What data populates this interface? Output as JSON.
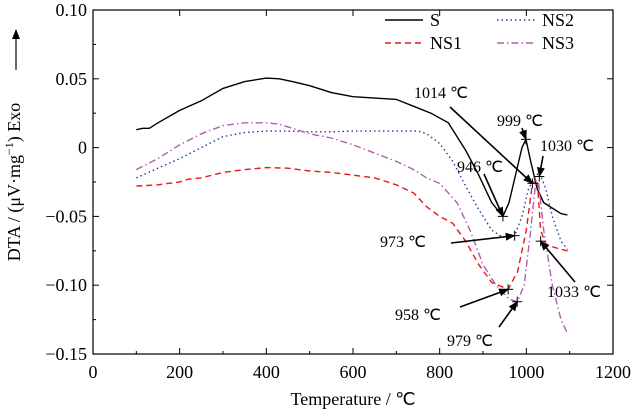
{
  "chart_data": {
    "type": "line",
    "title": "",
    "xlabel": "Temperature / ℃",
    "ylabel": "DTA / (μV·mg⁻¹) Exo",
    "ylabel_parts": [
      "DTA / (μV·mg",
      "−1",
      ") Exo"
    ],
    "xlim": [
      0,
      1200
    ],
    "ylim": [
      -0.15,
      0.1
    ],
    "xticks": [
      0,
      200,
      400,
      600,
      800,
      1000,
      1200
    ],
    "xtick_labels": [
      "0",
      "200",
      "400",
      "600",
      "800",
      "1000",
      "1200"
    ],
    "yticks": [
      -0.15,
      -0.1,
      -0.05,
      0,
      0.05,
      0.1
    ],
    "ytick_labels": [
      "−0.15",
      "−0.10",
      "−0.05",
      "0",
      "0.05",
      "0.10"
    ],
    "grid": false,
    "legend_position": "top-right",
    "series": [
      {
        "name": "S",
        "color": "#000000",
        "dash": "solid",
        "points": [
          [
            100,
            0.013
          ],
          [
            115,
            0.014
          ],
          [
            130,
            0.014
          ],
          [
            150,
            0.018
          ],
          [
            200,
            0.027
          ],
          [
            250,
            0.034
          ],
          [
            300,
            0.043
          ],
          [
            350,
            0.048
          ],
          [
            400,
            0.0505
          ],
          [
            430,
            0.05
          ],
          [
            460,
            0.048
          ],
          [
            500,
            0.045
          ],
          [
            550,
            0.04
          ],
          [
            600,
            0.037
          ],
          [
            650,
            0.036
          ],
          [
            700,
            0.035
          ],
          [
            740,
            0.03
          ],
          [
            780,
            0.025
          ],
          [
            820,
            0.018
          ],
          [
            860,
            -0.002
          ],
          [
            890,
            -0.02
          ],
          [
            920,
            -0.04
          ],
          [
            946,
            -0.05
          ],
          [
            960,
            -0.04
          ],
          [
            975,
            -0.02
          ],
          [
            990,
            0.0
          ],
          [
            999,
            0.006
          ],
          [
            1010,
            -0.01
          ],
          [
            1025,
            -0.03
          ],
          [
            1040,
            -0.04
          ],
          [
            1060,
            -0.044
          ],
          [
            1080,
            -0.048
          ],
          [
            1095,
            -0.049
          ]
        ]
      },
      {
        "name": "NS1",
        "color": "#e41a1c",
        "dash": "dashed",
        "points": [
          [
            100,
            -0.028
          ],
          [
            150,
            -0.027
          ],
          [
            200,
            -0.025
          ],
          [
            220,
            -0.023
          ],
          [
            250,
            -0.022
          ],
          [
            300,
            -0.018
          ],
          [
            350,
            -0.016
          ],
          [
            400,
            -0.0145
          ],
          [
            450,
            -0.015
          ],
          [
            500,
            -0.017
          ],
          [
            550,
            -0.018
          ],
          [
            600,
            -0.02
          ],
          [
            650,
            -0.022
          ],
          [
            700,
            -0.027
          ],
          [
            740,
            -0.033
          ],
          [
            770,
            -0.043
          ],
          [
            800,
            -0.05
          ],
          [
            830,
            -0.055
          ],
          [
            860,
            -0.068
          ],
          [
            890,
            -0.085
          ],
          [
            920,
            -0.098
          ],
          [
            958,
            -0.103
          ],
          [
            980,
            -0.09
          ],
          [
            1000,
            -0.06
          ],
          [
            1014,
            -0.026
          ],
          [
            1025,
            -0.023
          ],
          [
            1033,
            -0.06
          ],
          [
            1045,
            -0.07
          ],
          [
            1060,
            -0.072
          ],
          [
            1080,
            -0.074
          ],
          [
            1095,
            -0.075
          ]
        ]
      },
      {
        "name": "NS2",
        "color": "#2b3a9a",
        "dash": "dotted",
        "points": [
          [
            100,
            -0.022
          ],
          [
            150,
            -0.015
          ],
          [
            200,
            -0.008
          ],
          [
            250,
            0.0
          ],
          [
            300,
            0.008
          ],
          [
            350,
            0.011
          ],
          [
            400,
            0.012
          ],
          [
            450,
            0.012
          ],
          [
            500,
            0.0115
          ],
          [
            550,
            0.0115
          ],
          [
            600,
            0.012
          ],
          [
            650,
            0.012
          ],
          [
            700,
            0.012
          ],
          [
            750,
            0.012
          ],
          [
            770,
            0.01
          ],
          [
            800,
            0.003
          ],
          [
            830,
            -0.01
          ],
          [
            860,
            -0.028
          ],
          [
            890,
            -0.045
          ],
          [
            920,
            -0.06
          ],
          [
            945,
            -0.065
          ],
          [
            973,
            -0.064
          ],
          [
            990,
            -0.05
          ],
          [
            1005,
            -0.03
          ],
          [
            1020,
            -0.021
          ],
          [
            1030,
            -0.018
          ],
          [
            1045,
            -0.03
          ],
          [
            1060,
            -0.05
          ],
          [
            1080,
            -0.068
          ],
          [
            1095,
            -0.074
          ]
        ]
      },
      {
        "name": "NS3",
        "color": "#b05fb0",
        "dash": "dashdot",
        "points": [
          [
            100,
            -0.016
          ],
          [
            150,
            -0.008
          ],
          [
            200,
            0.002
          ],
          [
            250,
            0.01
          ],
          [
            300,
            0.016
          ],
          [
            350,
            0.018
          ],
          [
            400,
            0.018
          ],
          [
            430,
            0.017
          ],
          [
            460,
            0.014
          ],
          [
            500,
            0.01
          ],
          [
            550,
            0.007
          ],
          [
            600,
            0.002
          ],
          [
            650,
            -0.004
          ],
          [
            700,
            -0.01
          ],
          [
            740,
            -0.016
          ],
          [
            770,
            -0.022
          ],
          [
            800,
            -0.026
          ],
          [
            840,
            -0.04
          ],
          [
            870,
            -0.06
          ],
          [
            900,
            -0.085
          ],
          [
            930,
            -0.1
          ],
          [
            960,
            -0.11
          ],
          [
            979,
            -0.112
          ],
          [
            995,
            -0.1
          ],
          [
            1010,
            -0.06
          ],
          [
            1020,
            -0.03
          ],
          [
            1028,
            -0.025
          ],
          [
            1040,
            -0.06
          ],
          [
            1060,
            -0.1
          ],
          [
            1080,
            -0.125
          ],
          [
            1095,
            -0.135
          ]
        ]
      }
    ],
    "annotations": [
      {
        "label": "1014 ℃",
        "x": 1014,
        "y": -0.026
      },
      {
        "label": "999 ℃",
        "x": 999,
        "y": 0.006
      },
      {
        "label": "1030 ℃",
        "x": 1030,
        "y": -0.021
      },
      {
        "label": "946 ℃",
        "x": 946,
        "y": -0.05
      },
      {
        "label": "973 ℃",
        "x": 973,
        "y": -0.064
      },
      {
        "label": "1033 ℃",
        "x": 1033,
        "y": -0.068
      },
      {
        "label": "958 ℃",
        "x": 958,
        "y": -0.103
      },
      {
        "label": "979 ℃",
        "x": 979,
        "y": -0.112
      }
    ]
  }
}
